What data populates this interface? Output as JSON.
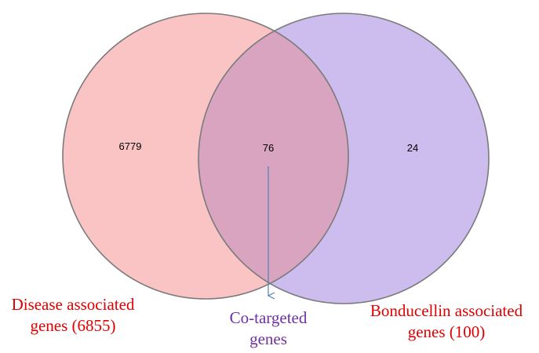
{
  "diagram": {
    "type": "venn",
    "colors": {
      "left_fill": "#fbc4c4",
      "right_fill": "#cdbdee",
      "overlap_fill": "#d8a4c0",
      "outline": "#7a7a7a",
      "arrow": "#4f7fb5",
      "left_label_color": "#e00000",
      "center_label_color": "#7030a0",
      "right_label_color": "#e00000"
    },
    "sets": [
      {
        "id": "left",
        "label_lines": [
          "Disease associated",
          "genes (6855)"
        ],
        "only_count": "6779"
      },
      {
        "id": "right",
        "label_lines": [
          "Bonducellin associated",
          "genes (100)"
        ],
        "only_count": "24"
      }
    ],
    "intersection": {
      "count": "76",
      "label_lines": [
        "Co-targeted",
        "genes"
      ]
    }
  }
}
